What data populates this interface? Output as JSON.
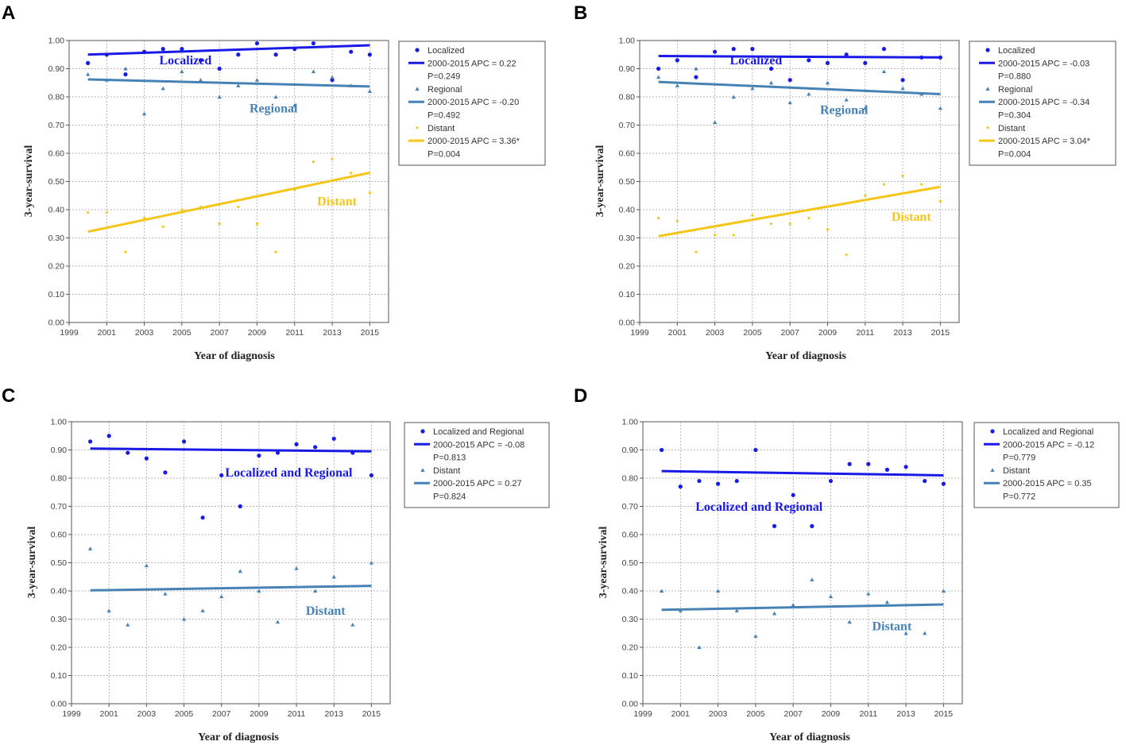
{
  "chart_data": [
    {
      "type": "scatter",
      "panel": "A",
      "xlabel": "Year of diagnosis",
      "ylabel": "3-year-survival",
      "xlim": [
        1999,
        2016
      ],
      "ylim": [
        0,
        1
      ],
      "xticks": [
        "1999",
        "2001",
        "2003",
        "2005",
        "2007",
        "2009",
        "2011",
        "2013",
        "2015"
      ],
      "yticks": [
        "0.00",
        "0.10",
        "0.20",
        "0.30",
        "0.40",
        "0.50",
        "0.60",
        "0.70",
        "0.80",
        "0.90",
        "1.00"
      ],
      "grid": true,
      "legend_position": "right",
      "series": [
        {
          "name": "Localized",
          "marker": "circle",
          "color": "#1a1ae6",
          "x": [
            2000,
            2001,
            2002,
            2003,
            2004,
            2005,
            2006,
            2007,
            2008,
            2009,
            2010,
            2011,
            2012,
            2013,
            2014,
            2015
          ],
          "y": [
            0.92,
            0.95,
            0.88,
            0.96,
            0.97,
            0.97,
            0.93,
            0.9,
            0.95,
            0.99,
            0.95,
            0.97,
            0.99,
            0.86,
            0.96,
            0.95
          ],
          "trend": {
            "label": "2000-2015 APC  = 0.22",
            "p": "P=0.249",
            "start": 0.95,
            "end": 0.983
          },
          "annotation": "Localized",
          "annotation_x": 2003.8,
          "annotation_y": 0.915
        },
        {
          "name": "Regional",
          "marker": "triangle",
          "color": "#4682b4",
          "x": [
            2000,
            2001,
            2002,
            2003,
            2004,
            2005,
            2006,
            2007,
            2008,
            2009,
            2010,
            2011,
            2012,
            2013,
            2014,
            2015
          ],
          "y": [
            0.88,
            0.86,
            0.9,
            0.74,
            0.83,
            0.89,
            0.86,
            0.8,
            0.84,
            0.86,
            0.8,
            0.77,
            0.89,
            0.87,
            0.84,
            0.82
          ],
          "trend": {
            "label": "2000-2015 APC  = -0.20",
            "p": "P=0.492",
            "start": 0.862,
            "end": 0.837
          },
          "annotation": "Regional",
          "annotation_x": 2008.6,
          "annotation_y": 0.745
        },
        {
          "name": "Distant",
          "marker": "dot",
          "color": "#f5c518",
          "x": [
            2000,
            2001,
            2002,
            2003,
            2004,
            2005,
            2006,
            2007,
            2008,
            2009,
            2010,
            2011,
            2012,
            2013,
            2014,
            2015
          ],
          "y": [
            0.39,
            0.39,
            0.25,
            0.37,
            0.34,
            0.4,
            0.41,
            0.35,
            0.41,
            0.35,
            0.25,
            0.47,
            0.57,
            0.58,
            0.53,
            0.46
          ],
          "trend": {
            "label": "2000-2015 APC  = 3.36*",
            "p": "P=0.004",
            "start": 0.322,
            "end": 0.531
          },
          "annotation": "Distant",
          "annotation_x": 2012.2,
          "annotation_y": 0.415
        }
      ]
    },
    {
      "type": "scatter",
      "panel": "B",
      "xlabel": "Year of diagnosis",
      "ylabel": "3-year-survival",
      "xlim": [
        1999,
        2016
      ],
      "ylim": [
        0,
        1
      ],
      "xticks": [
        "1999",
        "2001",
        "2003",
        "2005",
        "2007",
        "2009",
        "2011",
        "2013",
        "2015"
      ],
      "yticks": [
        "0.00",
        "0.10",
        "0.20",
        "0.30",
        "0.40",
        "0.50",
        "0.60",
        "0.70",
        "0.80",
        "0.90",
        "1.00"
      ],
      "grid": true,
      "legend_position": "right",
      "series": [
        {
          "name": "Localized",
          "marker": "circle",
          "color": "#1a1ae6",
          "x": [
            2000,
            2001,
            2002,
            2003,
            2004,
            2005,
            2006,
            2007,
            2008,
            2009,
            2010,
            2011,
            2012,
            2013,
            2014,
            2015
          ],
          "y": [
            0.9,
            0.93,
            0.87,
            0.96,
            0.97,
            0.97,
            0.9,
            0.86,
            0.93,
            0.92,
            0.95,
            0.92,
            0.97,
            0.86,
            0.94,
            0.94
          ],
          "trend": {
            "label": "2000-2015 APC  = -0.03",
            "p": "P=0.880",
            "start": 0.945,
            "end": 0.94
          },
          "annotation": "Localized",
          "annotation_x": 2003.8,
          "annotation_y": 0.915
        },
        {
          "name": "Regional",
          "marker": "triangle",
          "color": "#4682b4",
          "x": [
            2000,
            2001,
            2002,
            2003,
            2004,
            2005,
            2006,
            2007,
            2008,
            2009,
            2010,
            2011,
            2012,
            2013,
            2014,
            2015
          ],
          "y": [
            0.87,
            0.84,
            0.9,
            0.71,
            0.8,
            0.83,
            0.85,
            0.78,
            0.81,
            0.85,
            0.79,
            0.76,
            0.89,
            0.83,
            0.81,
            0.76
          ],
          "trend": {
            "label": "2000-2015 APC  = -0.34",
            "p": "P=0.304",
            "start": 0.853,
            "end": 0.81
          },
          "annotation": "Regional",
          "annotation_x": 2008.6,
          "annotation_y": 0.74
        },
        {
          "name": "Distant",
          "marker": "dot",
          "color": "#f5c518",
          "x": [
            2000,
            2001,
            2002,
            2003,
            2004,
            2005,
            2006,
            2007,
            2008,
            2009,
            2010,
            2011,
            2012,
            2013,
            2014,
            2015
          ],
          "y": [
            0.37,
            0.36,
            0.25,
            0.31,
            0.31,
            0.38,
            0.35,
            0.35,
            0.37,
            0.33,
            0.24,
            0.45,
            0.49,
            0.52,
            0.49,
            0.43
          ],
          "trend": {
            "label": "2000-2015 APC  = 3.04*",
            "p": "P=0.004",
            "start": 0.306,
            "end": 0.481
          },
          "annotation": "Distant",
          "annotation_x": 2012.4,
          "annotation_y": 0.36
        }
      ]
    },
    {
      "type": "scatter",
      "panel": "C",
      "xlabel": "Year of diagnosis",
      "ylabel": "3-year-survival",
      "xlim": [
        1999,
        2016
      ],
      "ylim": [
        0,
        1
      ],
      "xticks": [
        "1999",
        "2001",
        "2003",
        "2005",
        "2007",
        "2009",
        "2011",
        "2013",
        "2015"
      ],
      "yticks": [
        "0.00",
        "0.10",
        "0.20",
        "0.30",
        "0.40",
        "0.50",
        "0.60",
        "0.70",
        "0.80",
        "0.90",
        "1.00"
      ],
      "grid": true,
      "legend_position": "right",
      "series": [
        {
          "name": "Localized and Regional",
          "marker": "circle",
          "color": "#1a1ae6",
          "x": [
            2000,
            2001,
            2002,
            2003,
            2004,
            2005,
            2006,
            2007,
            2008,
            2009,
            2010,
            2011,
            2012,
            2013,
            2014,
            2015
          ],
          "y": [
            0.93,
            0.95,
            0.89,
            0.87,
            0.82,
            0.93,
            0.66,
            0.81,
            0.7,
            0.88,
            0.89,
            0.92,
            0.91,
            0.94,
            0.89,
            0.81
          ],
          "trend": {
            "label": "2000-2015 APC  = -0.08",
            "p": "P=0.813",
            "start": 0.905,
            "end": 0.895
          },
          "annotation": "Localized and Regional",
          "annotation_x": 2007.2,
          "annotation_y": 0.805
        },
        {
          "name": "Distant",
          "marker": "triangle",
          "color": "#4682b4",
          "x": [
            2000,
            2001,
            2002,
            2003,
            2004,
            2005,
            2006,
            2007,
            2008,
            2009,
            2010,
            2011,
            2012,
            2013,
            2014,
            2015
          ],
          "y": [
            0.55,
            0.33,
            0.28,
            0.49,
            0.39,
            0.3,
            0.33,
            0.38,
            0.47,
            0.4,
            0.29,
            0.48,
            0.4,
            0.45,
            0.28,
            0.5
          ],
          "trend": {
            "label": "2000-2015 APC  = 0.27",
            "p": "P=0.824",
            "start": 0.402,
            "end": 0.418
          },
          "annotation": "Distant",
          "annotation_x": 2011.5,
          "annotation_y": 0.315
        }
      ]
    },
    {
      "type": "scatter",
      "panel": "D",
      "xlabel": "Year of diagnosis",
      "ylabel": "3-year-survival",
      "xlim": [
        1999,
        2016
      ],
      "ylim": [
        0,
        1
      ],
      "xticks": [
        "1999",
        "2001",
        "2003",
        "2005",
        "2007",
        "2009",
        "2011",
        "2013",
        "2015"
      ],
      "yticks": [
        "0.00",
        "0.10",
        "0.20",
        "0.30",
        "0.40",
        "0.50",
        "0.60",
        "0.70",
        "0.80",
        "0.90",
        "1.00"
      ],
      "grid": true,
      "legend_position": "right",
      "series": [
        {
          "name": "Localized and Regional",
          "marker": "circle",
          "color": "#1a1ae6",
          "x": [
            2000,
            2001,
            2002,
            2003,
            2004,
            2005,
            2006,
            2007,
            2008,
            2009,
            2010,
            2011,
            2012,
            2013,
            2014,
            2015
          ],
          "y": [
            0.9,
            0.77,
            0.79,
            0.78,
            0.79,
            0.9,
            0.63,
            0.74,
            0.63,
            0.79,
            0.85,
            0.85,
            0.83,
            0.84,
            0.79,
            0.78
          ],
          "trend": {
            "label": "2000-2015 APC  = -0.12",
            "p": "P=0.779",
            "start": 0.825,
            "end": 0.81
          },
          "annotation": "Localized and Regional",
          "annotation_x": 2001.8,
          "annotation_y": 0.685
        },
        {
          "name": "Distant",
          "marker": "triangle",
          "color": "#4682b4",
          "x": [
            2000,
            2001,
            2002,
            2003,
            2004,
            2005,
            2006,
            2007,
            2008,
            2009,
            2010,
            2011,
            2012,
            2013,
            2014,
            2015
          ],
          "y": [
            0.4,
            0.33,
            0.2,
            0.4,
            0.33,
            0.24,
            0.32,
            0.35,
            0.44,
            0.38,
            0.29,
            0.39,
            0.36,
            0.25,
            0.25,
            0.4
          ],
          "trend": {
            "label": "2000-2015 APC  = 0.35",
            "p": "P=0.772",
            "start": 0.333,
            "end": 0.352
          },
          "annotation": "Distant",
          "annotation_x": 2011.2,
          "annotation_y": 0.26
        }
      ]
    }
  ]
}
